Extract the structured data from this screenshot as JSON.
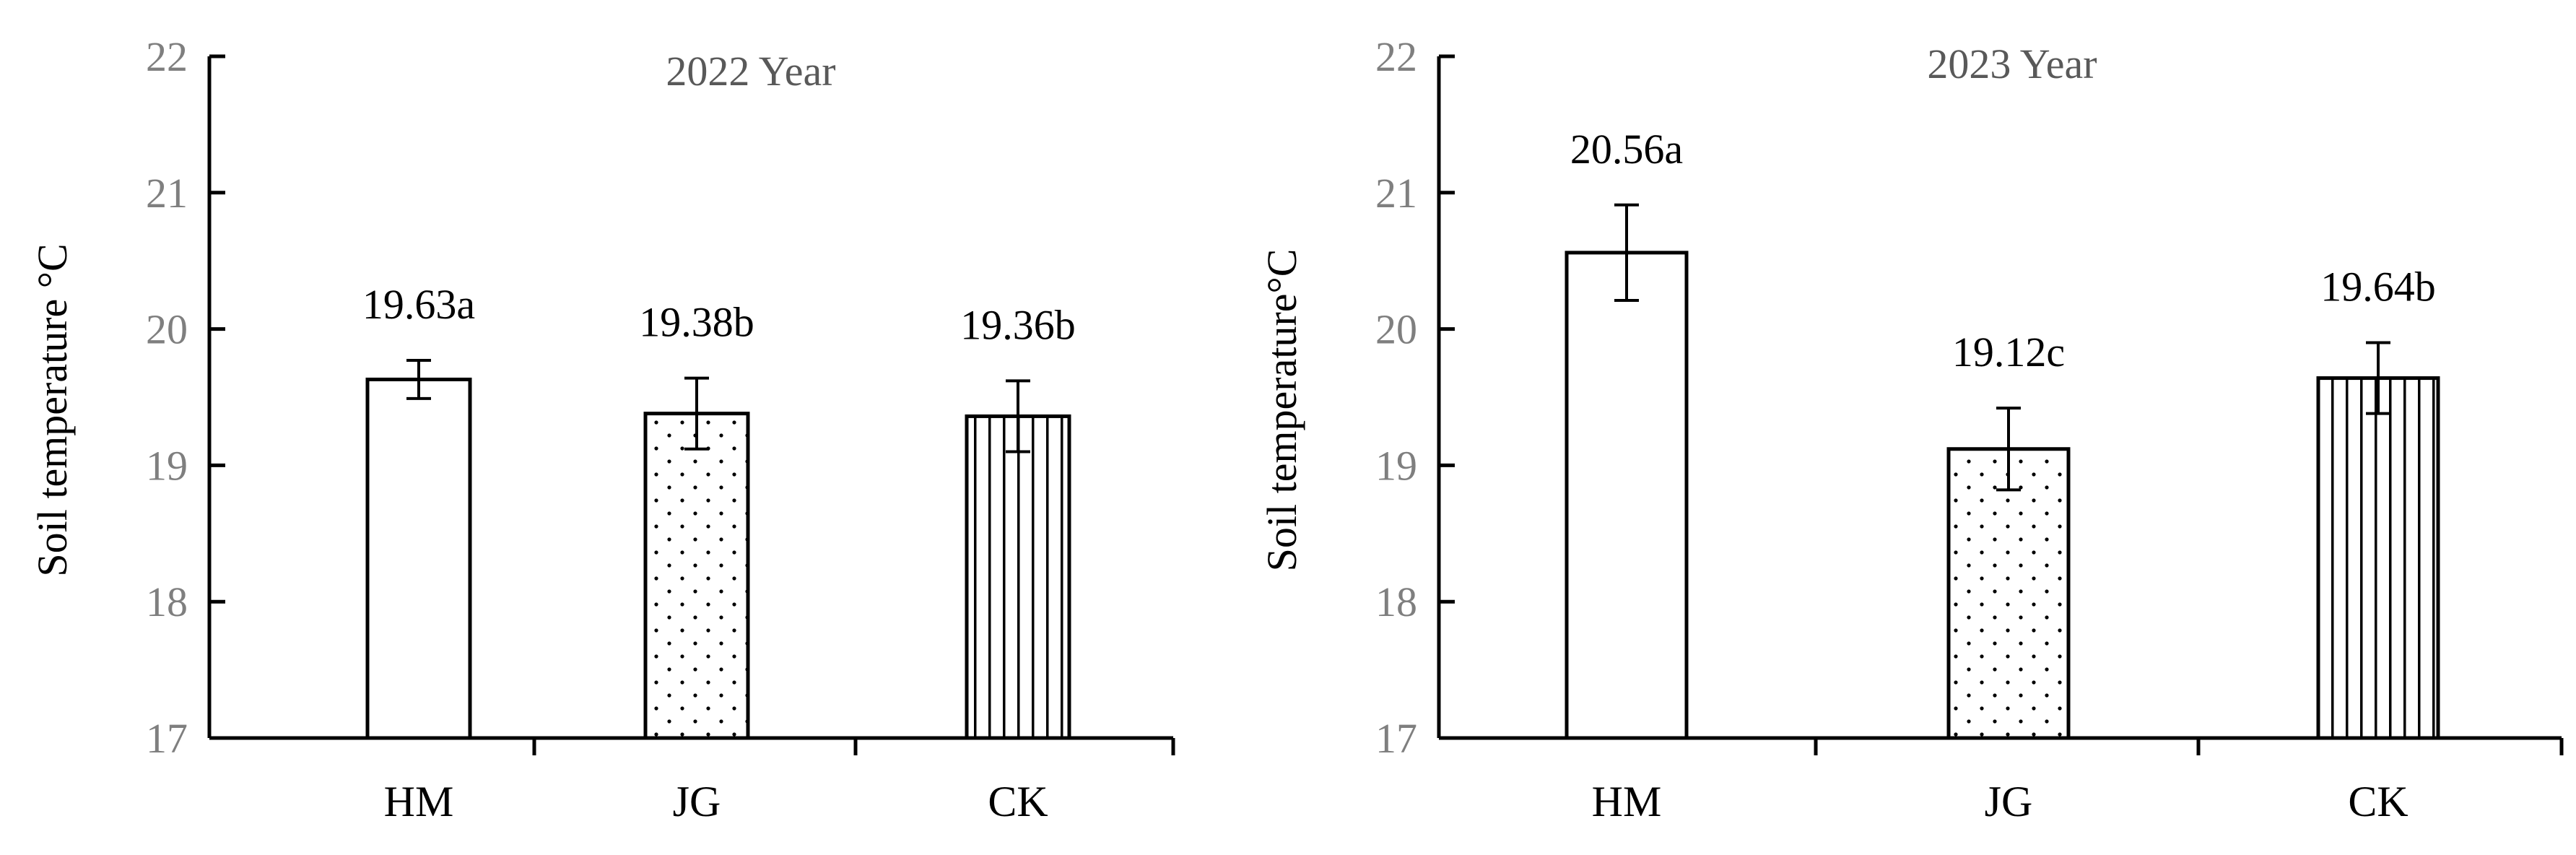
{
  "chart_data": [
    {
      "type": "bar",
      "title": "2022 Year",
      "ylabel": "Soil temperature °C",
      "xlabel": "",
      "categories": [
        "HM",
        "JG",
        "CK"
      ],
      "values": [
        19.63,
        19.38,
        19.36
      ],
      "errors": [
        0.14,
        0.26,
        0.26
      ],
      "data_labels": [
        "19.63a",
        "19.38b",
        "19.36b"
      ],
      "patterns": [
        "none",
        "dots",
        "vertical-lines"
      ],
      "ylim": [
        17,
        22
      ],
      "yticks": [
        "17",
        "18",
        "19",
        "20",
        "21",
        "22"
      ],
      "grid": false,
      "legend": "none"
    },
    {
      "type": "bar",
      "title": "2023 Year",
      "ylabel": "Soil temperature°C",
      "xlabel": "",
      "categories": [
        "HM",
        "JG",
        "CK"
      ],
      "values": [
        20.56,
        19.12,
        19.64
      ],
      "errors": [
        0.35,
        0.3,
        0.26
      ],
      "data_labels": [
        "20.56a",
        "19.12c",
        "19.64b"
      ],
      "patterns": [
        "none",
        "dots",
        "vertical-lines"
      ],
      "ylim": [
        17,
        22
      ],
      "yticks": [
        "17",
        "18",
        "19",
        "20",
        "21",
        "22"
      ],
      "grid": false,
      "legend": "none"
    }
  ]
}
